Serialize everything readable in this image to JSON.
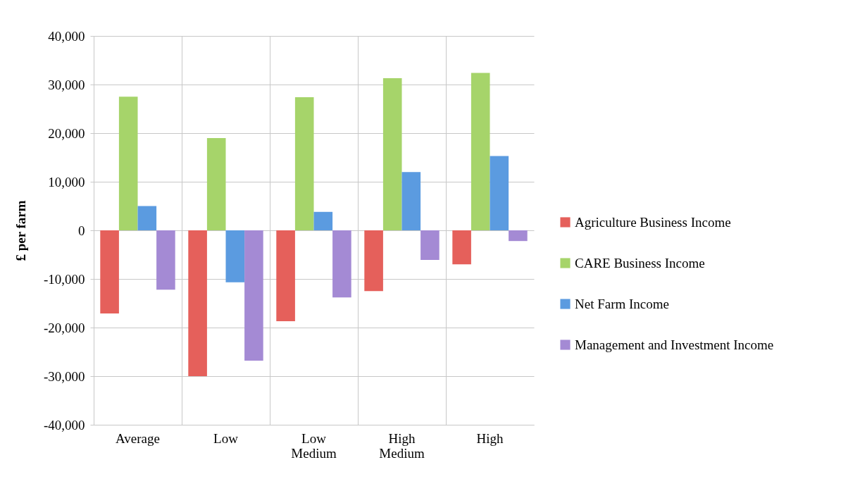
{
  "chart_data": {
    "type": "bar",
    "ylabel": "£ per farm",
    "categories": [
      "Average",
      "Low",
      "Low Medium",
      "High Medium",
      "High"
    ],
    "series": [
      {
        "name": "Agriculture Business Income",
        "color": "#e5605b",
        "values": [
          -17100,
          -30000,
          -18700,
          -12500,
          -7000
        ]
      },
      {
        "name": "CARE Business Income",
        "color": "#a6d46a",
        "values": [
          27500,
          19000,
          27400,
          31300,
          32400
        ]
      },
      {
        "name": "Net Farm Income",
        "color": "#5b9be0",
        "values": [
          5000,
          -10700,
          3800,
          12000,
          15300
        ]
      },
      {
        "name": "Management and Investment Income",
        "color": "#a48ad4",
        "values": [
          -12200,
          -26800,
          -13800,
          -6100,
          -2200
        ]
      }
    ],
    "ylim": [
      -40000,
      40000
    ],
    "yticks": [
      {
        "value": -40000,
        "label": "-40,000"
      },
      {
        "value": -30000,
        "label": "-30,000"
      },
      {
        "value": -20000,
        "label": "-20,000"
      },
      {
        "value": -10000,
        "label": "-10,000"
      },
      0,
      {
        "value": 10000,
        "label": "10,000"
      },
      {
        "value": 20000,
        "label": "20,000"
      },
      {
        "value": 30000,
        "label": "30,000"
      },
      {
        "value": 40000,
        "label": "40,000"
      }
    ],
    "grid": true,
    "legend": "right"
  }
}
